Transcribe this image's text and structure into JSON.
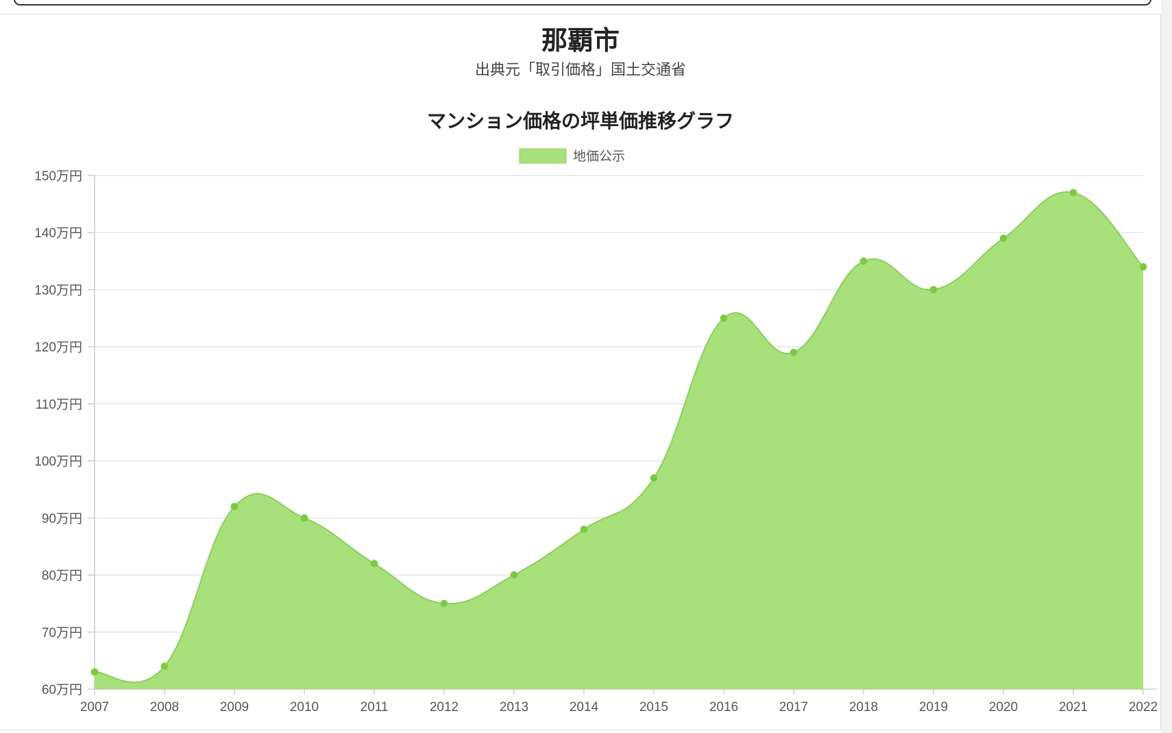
{
  "header": {
    "city": "那覇市",
    "source": "出典元「取引価格」国土交通省"
  },
  "chart_data": {
    "type": "area",
    "title": "マンション価格の坪単価推移グラフ",
    "xlabel": "",
    "ylabel": "",
    "unit_suffix": "万円",
    "x": [
      "2007",
      "2008",
      "2009",
      "2010",
      "2011",
      "2012",
      "2013",
      "2014",
      "2015",
      "2016",
      "2017",
      "2018",
      "2019",
      "2020",
      "2021",
      "2022"
    ],
    "series": [
      {
        "name": "地価公示",
        "values": [
          63,
          64,
          92,
          90,
          82,
          75,
          80,
          88,
          97,
          125,
          119,
          135,
          130,
          139,
          147,
          134
        ]
      }
    ],
    "ylim": [
      60,
      150
    ],
    "yticks": [
      60,
      70,
      80,
      90,
      100,
      110,
      120,
      130,
      140,
      150
    ],
    "grid": true,
    "legend": "top-center",
    "colors": {
      "fill": "#a8e07c",
      "line": "#8ccf5a",
      "point": "#7ac943",
      "grid": "#e6e6e6",
      "axis": "#cccccc"
    }
  }
}
